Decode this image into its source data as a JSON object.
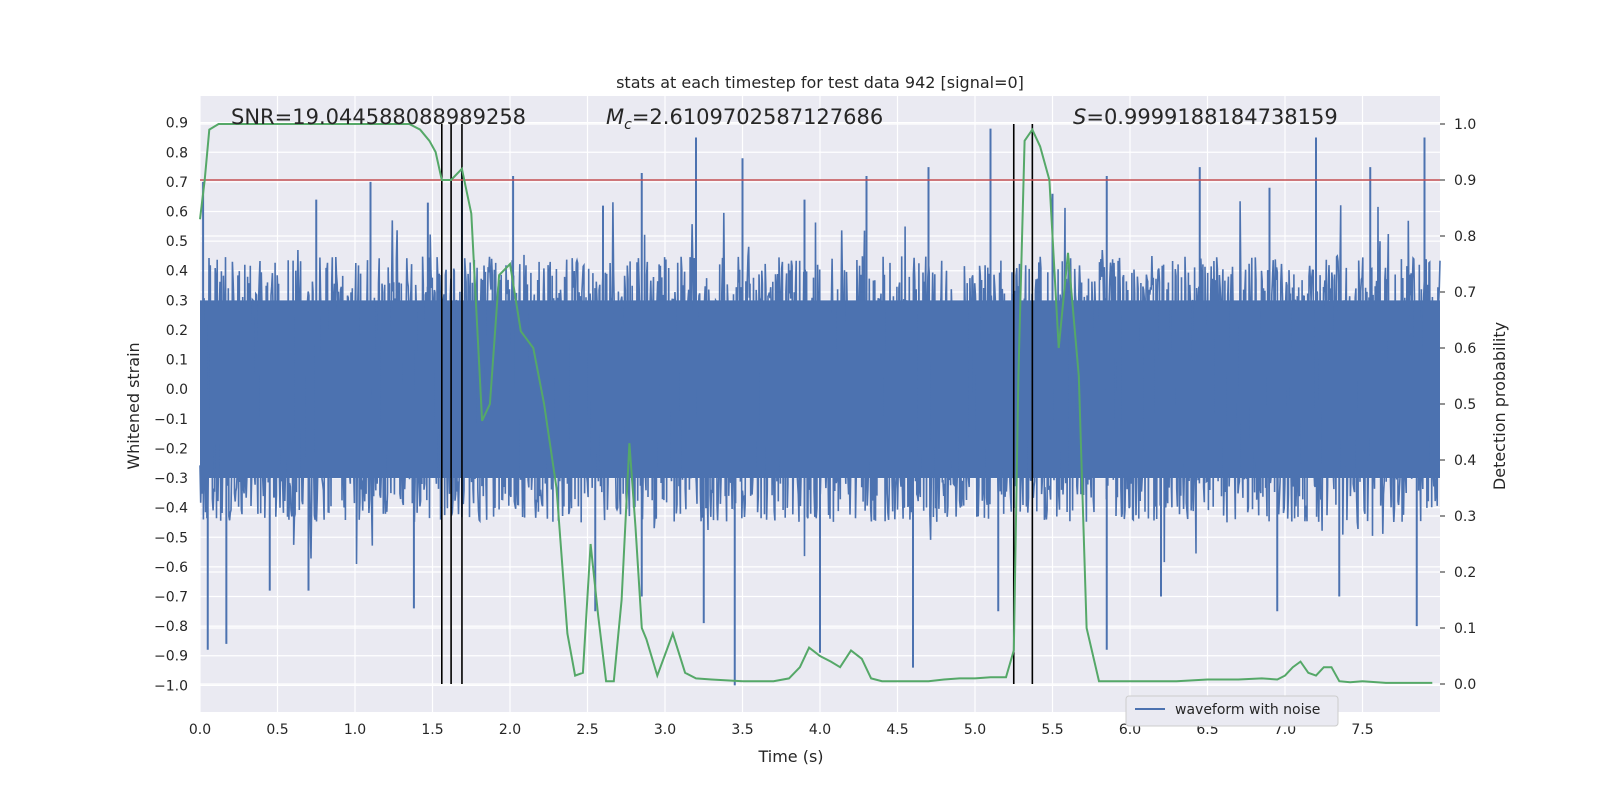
{
  "chart_data": {
    "type": "line",
    "title": "stats at each timestep for test data 942 [signal=0]",
    "xlabel": "Time (s)",
    "ylabel_left": "Whitened strain",
    "ylabel_right": "Detection probability",
    "xlim": [
      0.0,
      8.0
    ],
    "ylim_left": [
      -1.09,
      0.99
    ],
    "ylim_right": [
      -0.05,
      1.05
    ],
    "xticks": [
      "0.0",
      "0.5",
      "1.0",
      "1.5",
      "2.0",
      "2.5",
      "3.0",
      "3.5",
      "4.0",
      "4.5",
      "5.0",
      "5.5",
      "6.0",
      "6.5",
      "7.0",
      "7.5"
    ],
    "yticks_left": [
      "−1.0",
      "−0.9",
      "−0.8",
      "−0.7",
      "−0.6",
      "−0.5",
      "−0.4",
      "−0.3",
      "−0.2",
      "−0.1",
      "0.0",
      "0.1",
      "0.2",
      "0.3",
      "0.4",
      "0.5",
      "0.6",
      "0.7",
      "0.8",
      "0.9"
    ],
    "yticks_right": [
      "0.0",
      "0.1",
      "0.2",
      "0.3",
      "0.4",
      "0.5",
      "0.6",
      "0.7",
      "0.8",
      "0.9",
      "1.0"
    ],
    "annotations": {
      "snr_text": "SNR=19.044588088989258",
      "mc_symbol": "M",
      "mc_sub": "c",
      "mc_value": "=2.6109702587127686",
      "s_symbol": "S",
      "s_value": "=0.9999188184738159"
    },
    "threshold": {
      "value": 0.9,
      "axis": "right",
      "color": "#c44e52"
    },
    "vertical_lines": [
      1.56,
      1.62,
      1.69,
      5.25,
      5.37
    ],
    "waveform": {
      "name": "waveform with noise",
      "color": "#4c72b0",
      "duration": 8.0,
      "envelope_low": -0.45,
      "envelope_high": 0.45,
      "peaks_high": [
        [
          0.02,
          0.7
        ],
        [
          0.75,
          0.64
        ],
        [
          1.1,
          0.7
        ],
        [
          1.47,
          0.63
        ],
        [
          1.69,
          0.74
        ],
        [
          2.02,
          0.72
        ],
        [
          2.6,
          0.62
        ],
        [
          2.85,
          0.73
        ],
        [
          3.2,
          0.85
        ],
        [
          3.5,
          0.78
        ],
        [
          3.9,
          0.64
        ],
        [
          4.3,
          0.72
        ],
        [
          4.7,
          0.75
        ],
        [
          5.1,
          0.88
        ],
        [
          5.5,
          0.66
        ],
        [
          5.85,
          0.72
        ],
        [
          6.45,
          0.75
        ],
        [
          6.9,
          0.68
        ],
        [
          7.2,
          0.85
        ],
        [
          7.55,
          0.75
        ],
        [
          7.9,
          0.85
        ]
      ],
      "peaks_low": [
        [
          0.05,
          -0.88
        ],
        [
          0.17,
          -0.86
        ],
        [
          0.45,
          -0.68
        ],
        [
          0.7,
          -0.68
        ],
        [
          1.38,
          -0.74
        ],
        [
          2.55,
          -0.75
        ],
        [
          2.85,
          -0.7
        ],
        [
          3.25,
          -0.79
        ],
        [
          3.45,
          -1.0
        ],
        [
          4.0,
          -0.89
        ],
        [
          4.6,
          -0.94
        ],
        [
          5.15,
          -0.75
        ],
        [
          5.85,
          -0.88
        ],
        [
          6.2,
          -0.7
        ],
        [
          6.95,
          -0.75
        ],
        [
          7.35,
          -0.7
        ],
        [
          7.85,
          -0.8
        ]
      ]
    },
    "probability": {
      "color": "#55a868",
      "x": [
        0.0,
        0.03,
        0.06,
        0.12,
        0.2,
        0.3,
        0.45,
        0.6,
        0.75,
        0.85,
        0.95,
        1.05,
        1.15,
        1.25,
        1.35,
        1.42,
        1.48,
        1.52,
        1.56,
        1.62,
        1.69,
        1.75,
        1.82,
        1.87,
        1.93,
        2.0,
        2.07,
        2.15,
        2.22,
        2.3,
        2.37,
        2.42,
        2.47,
        2.52,
        2.57,
        2.62,
        2.67,
        2.72,
        2.77,
        2.81,
        2.85,
        2.88,
        2.95,
        3.05,
        3.13,
        3.2,
        3.3,
        3.5,
        3.7,
        3.8,
        3.87,
        3.93,
        4.0,
        4.07,
        4.13,
        4.2,
        4.27,
        4.33,
        4.4,
        4.5,
        4.6,
        4.7,
        4.8,
        4.9,
        5.0,
        5.1,
        5.2,
        5.25,
        5.28,
        5.32,
        5.37,
        5.42,
        5.48,
        5.54,
        5.6,
        5.67,
        5.72,
        5.8,
        6.0,
        6.3,
        6.5,
        6.7,
        6.85,
        6.95,
        7.0,
        7.05,
        7.1,
        7.15,
        7.2,
        7.25,
        7.3,
        7.35,
        7.42,
        7.5,
        7.65,
        7.8,
        7.95
      ],
      "y": [
        0.83,
        0.9,
        0.99,
        1.0,
        1.0,
        1.0,
        1.0,
        1.0,
        1.0,
        1.0,
        1.0,
        1.0,
        1.0,
        1.0,
        1.0,
        0.99,
        0.97,
        0.95,
        0.9,
        0.9,
        0.92,
        0.84,
        0.47,
        0.5,
        0.73,
        0.75,
        0.63,
        0.6,
        0.5,
        0.35,
        0.09,
        0.015,
        0.02,
        0.25,
        0.12,
        0.005,
        0.005,
        0.15,
        0.43,
        0.28,
        0.1,
        0.08,
        0.015,
        0.09,
        0.02,
        0.01,
        0.008,
        0.005,
        0.005,
        0.01,
        0.03,
        0.065,
        0.05,
        0.04,
        0.03,
        0.06,
        0.045,
        0.01,
        0.005,
        0.005,
        0.005,
        0.005,
        0.008,
        0.01,
        0.01,
        0.012,
        0.012,
        0.06,
        0.55,
        0.97,
        0.99,
        0.96,
        0.9,
        0.6,
        0.77,
        0.55,
        0.1,
        0.005,
        0.005,
        0.005,
        0.008,
        0.008,
        0.01,
        0.008,
        0.015,
        0.03,
        0.04,
        0.02,
        0.015,
        0.03,
        0.03,
        0.005,
        0.003,
        0.005,
        0.002,
        0.002,
        0.002
      ]
    },
    "grid": true,
    "legend": {
      "position": "bottom-right",
      "entries": [
        "waveform with noise"
      ]
    }
  }
}
